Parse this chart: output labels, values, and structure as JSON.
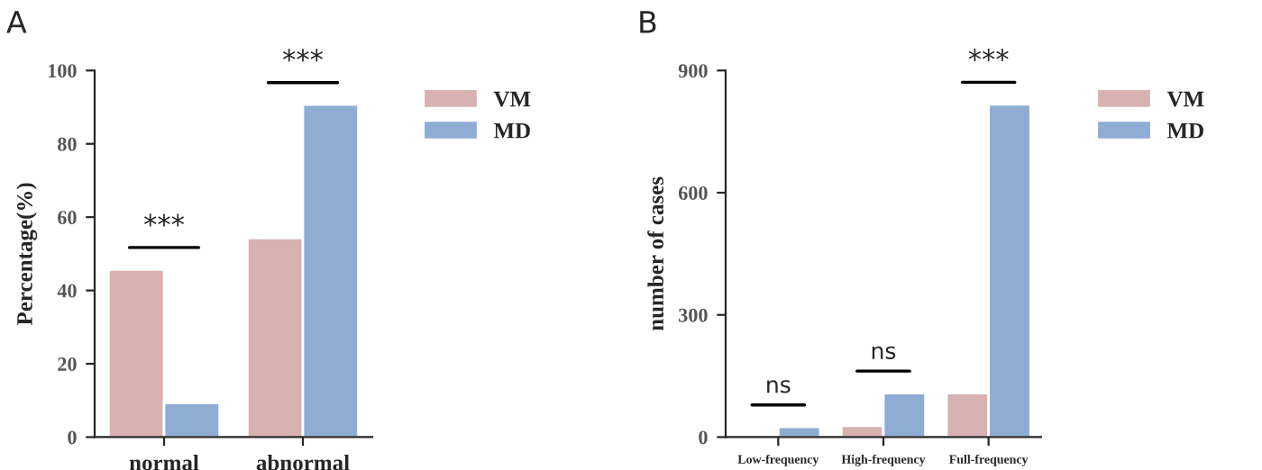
{
  "chart_data": [
    {
      "type": "bar",
      "title": "A",
      "ylabel": "Percentage(%)",
      "categories": [
        "normal",
        "abnormal"
      ],
      "series": [
        {
          "name": "VM",
          "color": "#d8b1b1",
          "values": [
            45.7,
            54.3
          ]
        },
        {
          "name": "MD",
          "color": "#8eacd4",
          "values": [
            9.3,
            90.7
          ]
        }
      ],
      "ylim": [
        0,
        100
      ],
      "yticks": [
        0,
        20,
        40,
        60,
        80,
        100
      ],
      "legend": "top right",
      "annotations": [
        "***",
        "***"
      ]
    },
    {
      "type": "bar",
      "title": "B",
      "ylabel": "number of cases",
      "categories": [
        "Low-frequency",
        "High-frequency",
        "Full-frequency"
      ],
      "series": [
        {
          "name": "VM",
          "color": "#d8b1b1",
          "values": [
            null,
            28,
            108
          ]
        },
        {
          "name": "MD",
          "color": "#8eacd4",
          "values": [
            25,
            108,
            817
          ]
        }
      ],
      "ylim": [
        0,
        900
      ],
      "yticks": [
        0,
        300,
        600,
        900
      ],
      "legend": "top right",
      "annotations": [
        "ns",
        "ns",
        "***"
      ]
    }
  ]
}
